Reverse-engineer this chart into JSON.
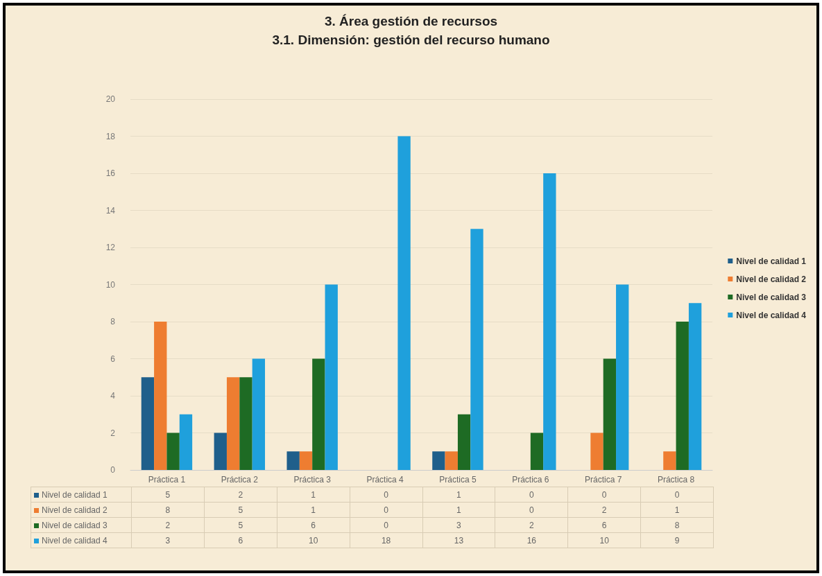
{
  "chart_data": {
    "type": "bar",
    "title": "3. Área gestión de recursos",
    "subtitle": "3.1. Dimensión: gestión del recurso humano",
    "categories": [
      "Práctica 1",
      "Práctica 2",
      "Práctica 3",
      "Práctica 4",
      "Práctica 5",
      "Práctica 6",
      "Práctica 7",
      "Práctica 8"
    ],
    "series": [
      {
        "name": "Nivel de calidad 1",
        "color": "#1f5f8b",
        "values": [
          5,
          2,
          1,
          0,
          1,
          0,
          0,
          0
        ]
      },
      {
        "name": "Nivel de calidad 2",
        "color": "#ee7d31",
        "values": [
          8,
          5,
          1,
          0,
          1,
          0,
          2,
          1
        ]
      },
      {
        "name": "Nivel de calidad 3",
        "color": "#1e6b24",
        "values": [
          2,
          5,
          6,
          0,
          3,
          2,
          6,
          8
        ]
      },
      {
        "name": "Nivel de calidad 4",
        "color": "#1fa0dc",
        "values": [
          3,
          6,
          10,
          18,
          13,
          16,
          10,
          9
        ]
      }
    ],
    "ylim": [
      0,
      20
    ],
    "yticks": [
      0,
      2,
      4,
      6,
      8,
      10,
      12,
      14,
      16,
      18,
      20
    ],
    "grid": "y",
    "legend": "right",
    "data_labels": true
  }
}
